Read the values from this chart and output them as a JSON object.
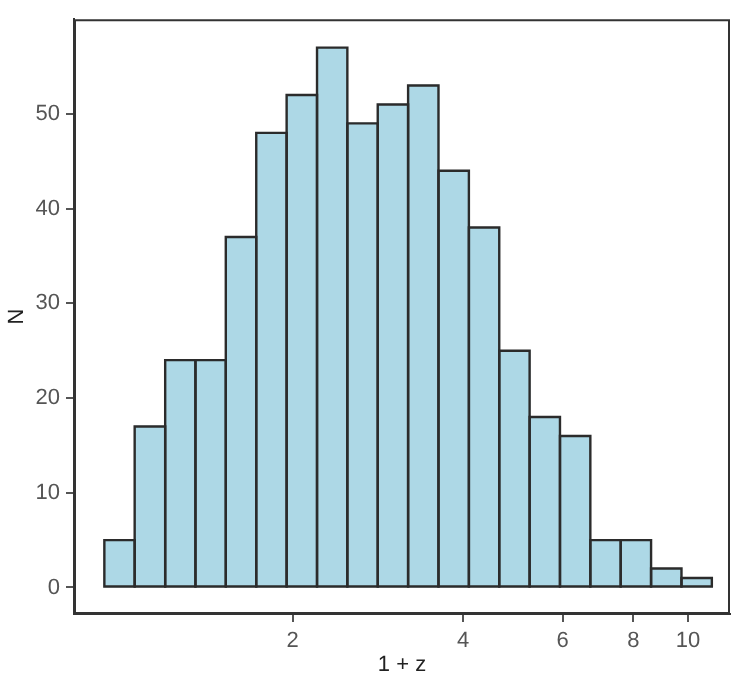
{
  "chart_data": {
    "type": "histogram",
    "xlabel": "1 + z",
    "ylabel": "N",
    "bins": [
      0.929,
      1.051,
      1.19,
      1.346,
      1.523,
      1.724,
      1.951,
      2.208,
      2.498,
      2.827,
      3.199,
      3.62,
      4.097,
      4.636,
      5.246,
      5.936,
      6.717,
      7.601,
      8.601,
      9.734,
      11.015
    ],
    "values": [
      5,
      17,
      24,
      24,
      37,
      48,
      52,
      57,
      49,
      51,
      53,
      44,
      38,
      25,
      18,
      16,
      5,
      5,
      2,
      1
    ],
    "color": "#add8e6",
    "log": "x",
    "xlim": [
      0.821,
      11.86
    ],
    "xticks": [
      2,
      4,
      6,
      8,
      10
    ],
    "ylim": [
      -2.8,
      60
    ],
    "yticks": [
      0,
      10,
      20,
      30,
      40,
      50
    ],
    "grid": false,
    "legend": false
  }
}
